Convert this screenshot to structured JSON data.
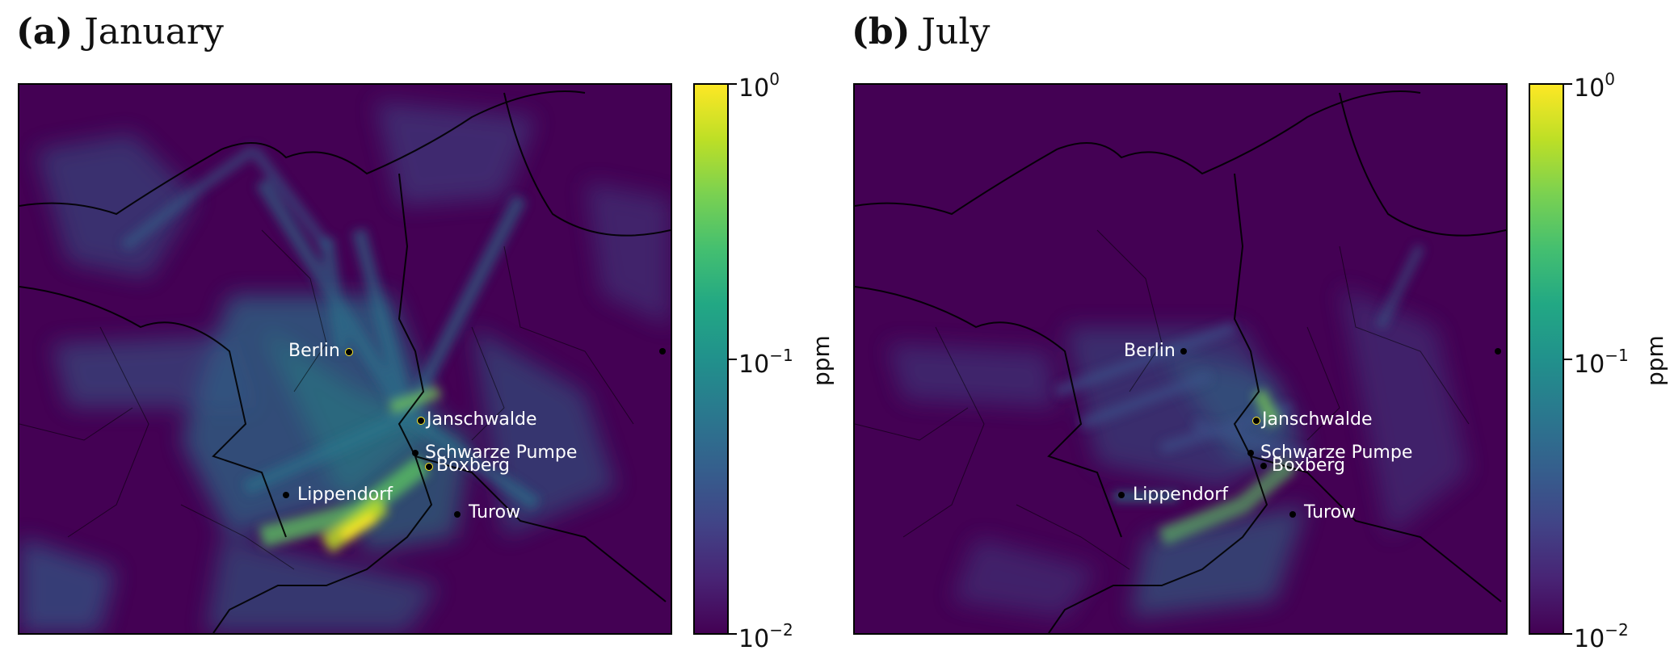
{
  "panels": [
    {
      "letter": "(a)",
      "title": "January"
    },
    {
      "letter": "(b)",
      "title": "July"
    }
  ],
  "colorbar": {
    "label": "ppm",
    "colormap": "viridis",
    "scale": "log",
    "range": [
      0.01,
      1
    ],
    "ticks": [
      {
        "base": "10",
        "exp": "0"
      },
      {
        "base": "10",
        "exp": "−1"
      },
      {
        "base": "10",
        "exp": "−2"
      }
    ]
  },
  "places": {
    "berlin": "Berlin",
    "janschwalde": "Janschwalde",
    "schwarze_pumpe": "Schwarze Pumpe",
    "boxberg": "Boxberg",
    "lippendorf": "Lippendorf",
    "turow": "Turow"
  },
  "colors": {
    "background": "#440154",
    "low": "#3b528b",
    "mid": "#21918c",
    "high": "#5ec962",
    "peak": "#fde725",
    "label": "#ffffff"
  }
}
